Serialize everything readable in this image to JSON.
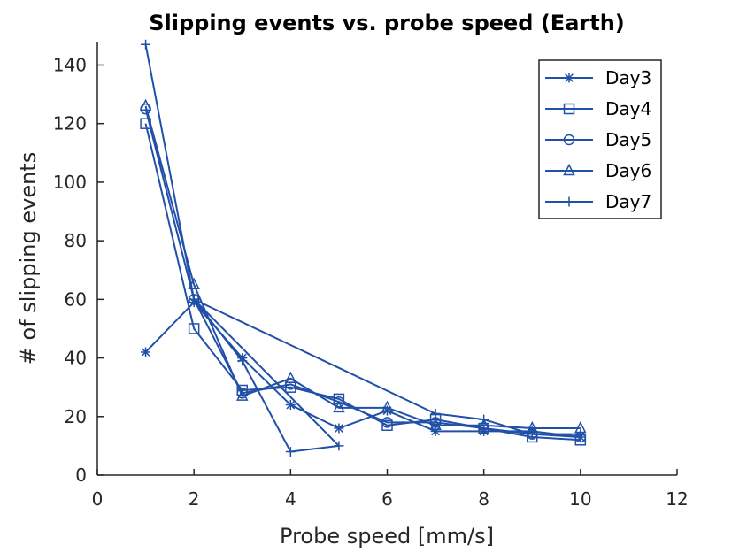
{
  "chart_data": {
    "type": "line",
    "title": "Slipping events vs. probe speed (Earth)",
    "xlabel": "Probe speed [mm/s]",
    "ylabel": "# of slipping events",
    "xlim": [
      0,
      12
    ],
    "ylim": [
      0,
      148
    ],
    "xticks": [
      0,
      2,
      4,
      6,
      8,
      10,
      12
    ],
    "yticks": [
      0,
      20,
      40,
      60,
      80,
      100,
      120,
      140
    ],
    "grid": false,
    "legend_position": "top-right",
    "line_color": "#2150A8",
    "series": [
      {
        "name": "Day3",
        "marker": "asterisk",
        "x": [
          1,
          2,
          3,
          4,
          5,
          6,
          7,
          8,
          9,
          10
        ],
        "y": [
          42,
          59,
          40,
          24,
          16,
          22,
          15,
          15,
          15,
          13
        ]
      },
      {
        "name": "Day4",
        "marker": "square",
        "x": [
          1,
          2,
          3,
          4,
          5,
          6,
          7,
          8,
          9,
          10
        ],
        "y": [
          120,
          50,
          29,
          30,
          26,
          17,
          19,
          16,
          13,
          12
        ]
      },
      {
        "name": "Day5",
        "marker": "circle",
        "x": [
          1,
          2,
          3,
          4,
          5,
          6,
          7,
          8,
          9,
          10
        ],
        "y": [
          125,
          60,
          28,
          31,
          25,
          18,
          18,
          16,
          14,
          13
        ]
      },
      {
        "name": "Day6",
        "marker": "triangle",
        "x": [
          1,
          2,
          3,
          4,
          5,
          6,
          7,
          8,
          9,
          10
        ],
        "y": [
          126,
          65,
          27,
          33,
          23,
          23,
          17,
          17,
          16,
          16
        ]
      },
      {
        "name": "Day7",
        "marker": "plus",
        "x": [
          1,
          2,
          3,
          4,
          5,
          2,
          7,
          8,
          9,
          10
        ],
        "y": [
          147,
          60,
          39,
          8,
          10,
          60,
          21,
          19,
          14,
          14
        ]
      }
    ]
  }
}
